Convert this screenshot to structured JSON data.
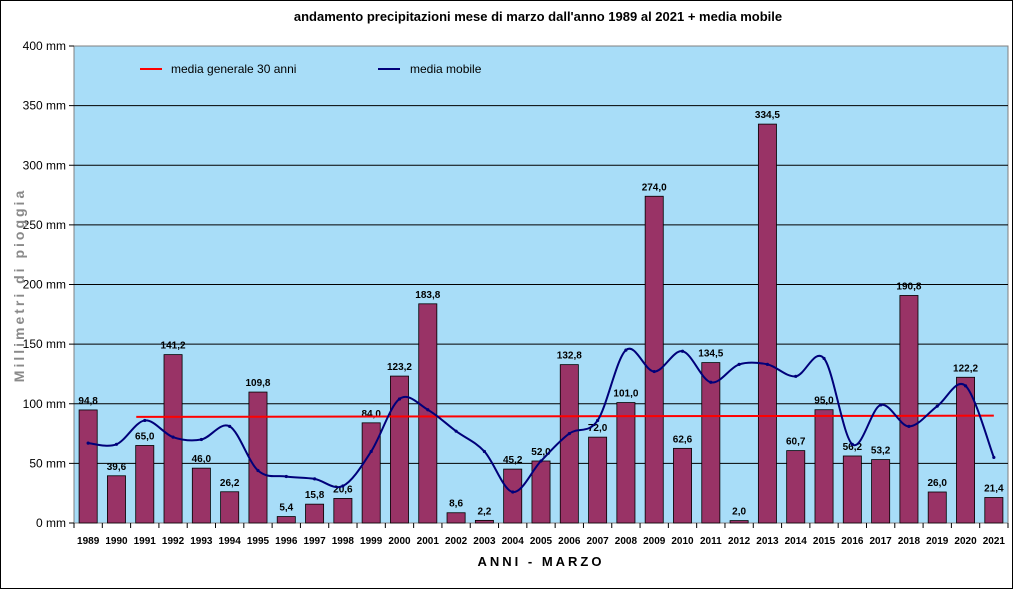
{
  "chart_data": {
    "type": "bar",
    "title": "andamento precipitazioni mese di marzo dall'anno 1989 al 2021 + media mobile",
    "xlabel": "ANNI  -  MARZO",
    "ylabel": "Millimetri di pioggia",
    "ylim": [
      0,
      400
    ],
    "yticks": [
      "0 mm",
      "50 mm",
      "100 mm",
      "150 mm",
      "200 mm",
      "250 mm",
      "300 mm",
      "350 mm",
      "400 mm"
    ],
    "ytick_values": [
      0,
      50,
      100,
      150,
      200,
      250,
      300,
      350,
      400
    ],
    "grid": true,
    "categories": [
      "1989",
      "1990",
      "1991",
      "1992",
      "1993",
      "1994",
      "1995",
      "1996",
      "1997",
      "1998",
      "1999",
      "2000",
      "2001",
      "2002",
      "2003",
      "2004",
      "2005",
      "2006",
      "2007",
      "2008",
      "2009",
      "2010",
      "2011",
      "2012",
      "2013",
      "2014",
      "2015",
      "2016",
      "2017",
      "2018",
      "2019",
      "2020",
      "2021"
    ],
    "values": [
      94.8,
      39.6,
      65.0,
      141.2,
      46.0,
      26.2,
      109.8,
      5.4,
      15.8,
      20.6,
      84.0,
      123.2,
      183.8,
      8.6,
      2.2,
      45.2,
      52.0,
      132.8,
      72.0,
      101.0,
      274.0,
      62.6,
      134.5,
      2.0,
      334.5,
      60.7,
      95.0,
      56.2,
      53.2,
      190.8,
      26.0,
      122.2,
      21.4
    ],
    "data_labels": [
      "94,8",
      "39,6",
      "65,0",
      "141,2",
      "46,0",
      "26,2",
      "109,8",
      "5,4",
      "15,8",
      "20,6",
      "84,0",
      "123,2",
      "183,8",
      "8,6",
      "2,2",
      "45,2",
      "52,0",
      "132,8",
      "72,0",
      "101,0",
      "274,0",
      "62,6",
      "134,5",
      "2,0",
      "334,5",
      "60,7",
      "95,0",
      "56,2",
      "53,2",
      "190,8",
      "26,0",
      "122,2",
      "21,4"
    ],
    "series": [
      {
        "name": "media generale 30 anni",
        "type": "line",
        "color": "#ff0000",
        "start_index": 1.7,
        "end_index": 32,
        "values_start_end": [
          89,
          90
        ]
      },
      {
        "name": "media mobile",
        "type": "line",
        "color": "#00007a",
        "values": [
          67,
          66,
          86,
          72,
          70,
          81,
          44,
          39,
          37,
          31,
          60,
          104,
          95,
          77,
          60,
          26,
          52,
          75,
          86,
          145,
          127,
          144,
          118,
          133,
          133,
          123,
          138,
          66,
          99,
          81,
          98,
          115,
          55
        ]
      }
    ],
    "colors": {
      "bar": "#993366",
      "plot_bg": "#a8ddf8",
      "legend_red": "#ff0000",
      "legend_blue": "#00007a"
    },
    "legend_position": "top-left inside"
  }
}
